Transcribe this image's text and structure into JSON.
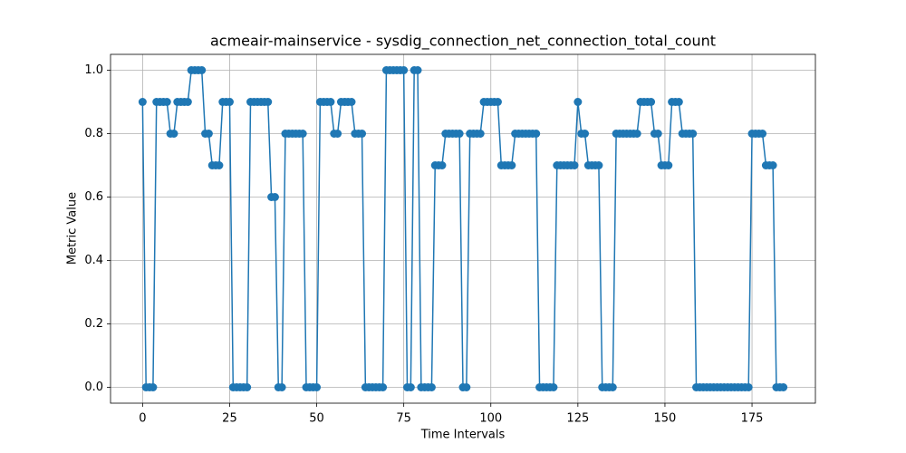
{
  "chart_data": {
    "type": "line",
    "title": "acmeair-mainservice - sysdig_connection_net_connection_total_count",
    "x_label": "Time Intervals",
    "y_label": "Metric Value",
    "x": [
      0,
      1,
      2,
      3,
      4,
      5,
      6,
      7,
      8,
      9,
      10,
      11,
      12,
      13,
      14,
      15,
      16,
      17,
      18,
      19,
      20,
      21,
      22,
      23,
      24,
      25,
      26,
      27,
      28,
      29,
      30,
      31,
      32,
      33,
      34,
      35,
      36,
      37,
      38,
      39,
      40,
      41,
      42,
      43,
      44,
      45,
      46,
      47,
      48,
      49,
      50,
      51,
      52,
      53,
      54,
      55,
      56,
      57,
      58,
      59,
      60,
      61,
      62,
      63,
      64,
      65,
      66,
      67,
      68,
      69,
      70,
      71,
      72,
      73,
      74,
      75,
      76,
      77,
      78,
      79,
      80,
      81,
      82,
      83,
      84,
      85,
      86,
      87,
      88,
      89,
      90,
      91,
      92,
      93,
      94,
      95,
      96,
      97,
      98,
      99,
      100,
      101,
      102,
      103,
      104,
      105,
      106,
      107,
      108,
      109,
      110,
      111,
      112,
      113,
      114,
      115,
      116,
      117,
      118,
      119,
      120,
      121,
      122,
      123,
      124,
      125,
      126,
      127,
      128,
      129,
      130,
      131,
      132,
      133,
      134,
      135,
      136,
      137,
      138,
      139,
      140,
      141,
      142,
      143,
      144,
      145,
      146,
      147,
      148,
      149,
      150,
      151,
      152,
      153,
      154,
      155,
      156,
      157,
      158,
      159,
      160,
      161,
      162,
      163,
      164,
      165,
      166,
      167,
      168,
      169,
      170,
      171,
      172,
      173,
      174,
      175,
      176,
      177,
      178,
      179,
      180,
      181,
      182,
      183,
      184
    ],
    "values": [
      0.9,
      0,
      0,
      0,
      0.9,
      0.9,
      0.9,
      0.9,
      0.8,
      0.8,
      0.9,
      0.9,
      0.9,
      0.9,
      1,
      1,
      1,
      1,
      0.8,
      0.8,
      0.7,
      0.7,
      0.7,
      0.9,
      0.9,
      0.9,
      0,
      0,
      0,
      0,
      0,
      0.9,
      0.9,
      0.9,
      0.9,
      0.9,
      0.9,
      0.6,
      0.6,
      0,
      0,
      0.8,
      0.8,
      0.8,
      0.8,
      0.8,
      0.8,
      0,
      0,
      0,
      0,
      0.9,
      0.9,
      0.9,
      0.9,
      0.8,
      0.8,
      0.9,
      0.9,
      0.9,
      0.9,
      0.8,
      0.8,
      0.8,
      0,
      0,
      0,
      0,
      0,
      0,
      1,
      1,
      1,
      1,
      1,
      1,
      0,
      0,
      1,
      1,
      0,
      0,
      0,
      0,
      0.7,
      0.7,
      0.7,
      0.8,
      0.8,
      0.8,
      0.8,
      0.8,
      0,
      0,
      0.8,
      0.8,
      0.8,
      0.8,
      0.9,
      0.9,
      0.9,
      0.9,
      0.9,
      0.7,
      0.7,
      0.7,
      0.7,
      0.8,
      0.8,
      0.8,
      0.8,
      0.8,
      0.8,
      0.8,
      0,
      0,
      0,
      0,
      0,
      0.7,
      0.7,
      0.7,
      0.7,
      0.7,
      0.7,
      0.9,
      0.8,
      0.8,
      0.7,
      0.7,
      0.7,
      0.7,
      0,
      0,
      0,
      0,
      0.8,
      0.8,
      0.8,
      0.8,
      0.8,
      0.8,
      0.8,
      0.9,
      0.9,
      0.9,
      0.9,
      0.8,
      0.8,
      0.7,
      0.7,
      0.7,
      0.9,
      0.9,
      0.9,
      0.8,
      0.8,
      0.8,
      0.8,
      0,
      0,
      0,
      0,
      0,
      0,
      0,
      0,
      0,
      0,
      0,
      0,
      0,
      0,
      0,
      0,
      0.8,
      0.8,
      0.8,
      0.8,
      0.7,
      0.7,
      0.7,
      0,
      0,
      0
    ],
    "color": "#1f77b4",
    "xlim": [
      -9.2,
      193.2
    ],
    "xticks": [
      0,
      25,
      50,
      75,
      100,
      125,
      150,
      175
    ],
    "ylim": [
      -0.05,
      1.05
    ],
    "yticks": [
      {
        "value": 0,
        "label": "0.0"
      },
      0.2,
      0.4,
      0.6,
      0.8,
      {
        "value": 1,
        "label": "1.0"
      }
    ],
    "grid": true
  }
}
